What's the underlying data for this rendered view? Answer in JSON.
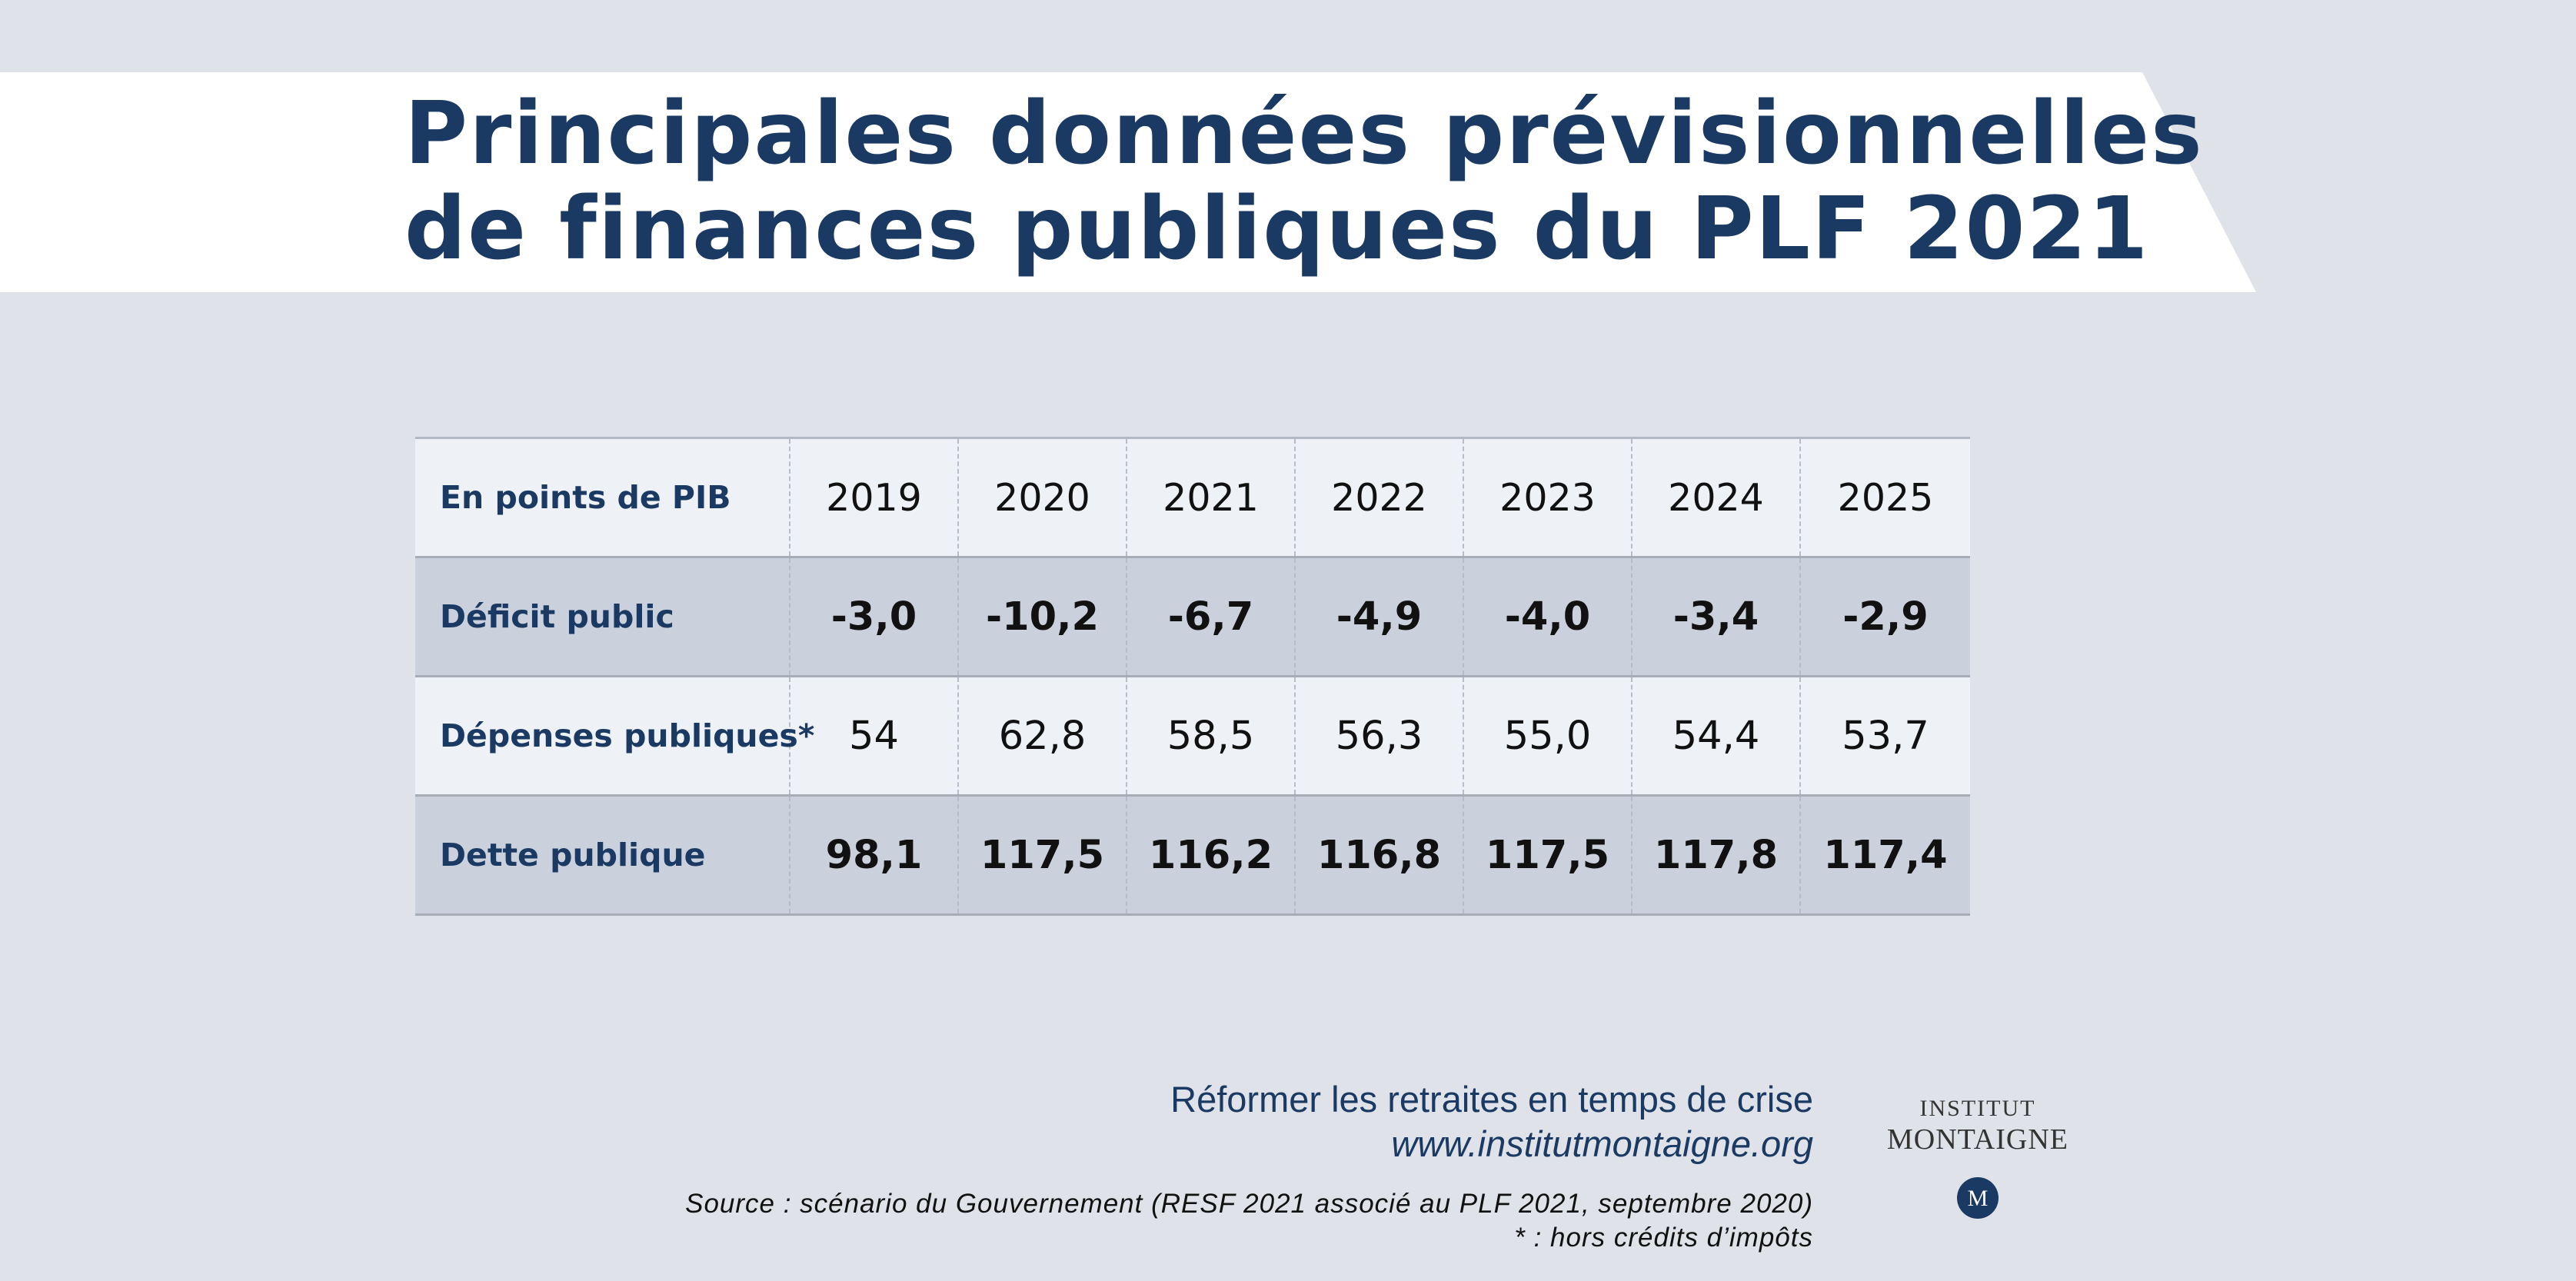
{
  "title": {
    "line1": "Principales données prévisionnelles",
    "line2": "de finances publiques du PLF 2021"
  },
  "chart_data": {
    "type": "table",
    "title": "Principales données prévisionnelles de finances publiques du PLF 2021",
    "row_header_label": "En points de PIB",
    "columns": [
      "2019",
      "2020",
      "2021",
      "2022",
      "2023",
      "2024",
      "2025"
    ],
    "rows": [
      {
        "label": "Déficit public",
        "values": [
          "-3,0",
          "-10,2",
          "-6,7",
          "-4,9",
          "-4,0",
          "-3,4",
          "-2,9"
        ],
        "bold": true,
        "shade": "dark"
      },
      {
        "label": "Dépenses publiques*",
        "values": [
          "54",
          "62,8",
          "58,5",
          "56,3",
          "55,0",
          "54,4",
          "53,7"
        ],
        "bold": false,
        "shade": "light"
      },
      {
        "label": "Dette publique",
        "values": [
          "98,1",
          "117,5",
          "116,2",
          "116,8",
          "117,5",
          "117,8",
          "117,4"
        ],
        "bold": true,
        "shade": "dark"
      }
    ]
  },
  "footer": {
    "publication_title": "Réformer les retraites en temps de crise",
    "url": "www.institutmontaigne.org",
    "source": "Source : scénario du Gouvernement (RESF 2021 associé au PLF 2021, septembre 2020)",
    "footnote": "* : hors crédits d’impôts"
  },
  "logo": {
    "line1": "INSTITUT",
    "line2": "MONTAIGNE",
    "mark": "M"
  },
  "colors": {
    "navy": "#1b3a63",
    "background": "#dfe2e8",
    "row_dark": "#cbd1dc",
    "row_light": "#eef1f5"
  }
}
